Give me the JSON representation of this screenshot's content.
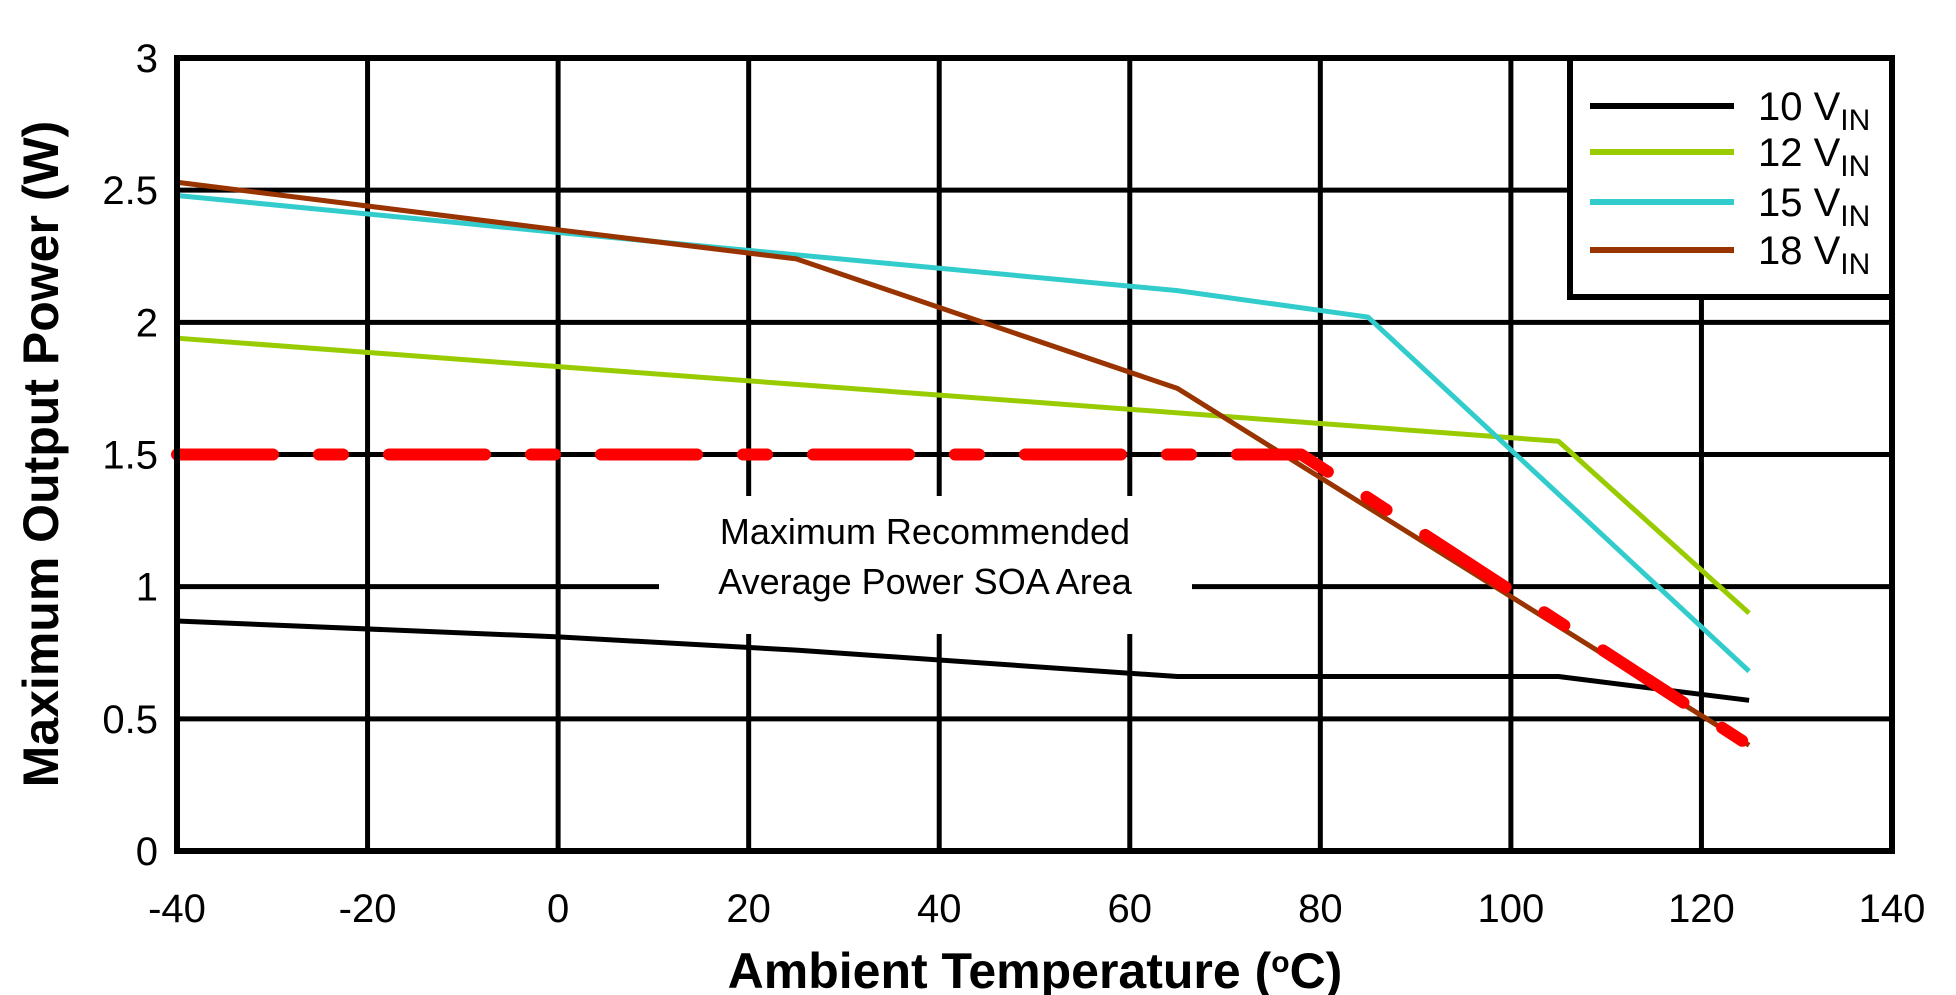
{
  "chart_data": {
    "type": "line",
    "title": "",
    "xlabel": "Ambient Temperature (°C)",
    "xlabel_parts": {
      "prefix": "Ambient Temperature (",
      "degree": "o",
      "suffix": "C)"
    },
    "ylabel": "Maximum Output Power (W)",
    "xlim": [
      -40,
      140
    ],
    "ylim": [
      0,
      3
    ],
    "xticks": [
      -40,
      -20,
      0,
      20,
      40,
      60,
      80,
      100,
      120,
      140
    ],
    "yticks": [
      0,
      0.5,
      1,
      1.5,
      2,
      2.5,
      3
    ],
    "ytick_labels": [
      "0",
      "0.5",
      "1",
      "1.5",
      "2",
      "2.5",
      "3"
    ],
    "grid": true,
    "legend_position": "upper right",
    "series": [
      {
        "name": "10 VIN",
        "label_main": "10 V",
        "label_sub": "IN",
        "color": "#000000",
        "points": [
          [
            -40,
            0.87
          ],
          [
            0,
            0.81
          ],
          [
            25,
            0.76
          ],
          [
            65,
            0.66
          ],
          [
            105,
            0.66
          ],
          [
            125,
            0.57
          ]
        ]
      },
      {
        "name": "12 VIN",
        "label_main": "12 V",
        "label_sub": "IN",
        "color": "#99CC00",
        "points": [
          [
            -40,
            1.94
          ],
          [
            105,
            1.55
          ],
          [
            125,
            0.9
          ]
        ]
      },
      {
        "name": "15 VIN",
        "label_main": "15 V",
        "label_sub": "IN",
        "color": "#33CCCC",
        "points": [
          [
            -40,
            2.48
          ],
          [
            0,
            2.34
          ],
          [
            65,
            2.12
          ],
          [
            85,
            2.02
          ],
          [
            125,
            0.68
          ]
        ]
      },
      {
        "name": "18 VIN",
        "label_main": "18 V",
        "label_sub": "IN",
        "color": "#993300",
        "points": [
          [
            -40,
            2.53
          ],
          [
            0,
            2.35
          ],
          [
            25,
            2.24
          ],
          [
            65,
            1.75
          ],
          [
            125,
            0.4
          ]
        ]
      }
    ],
    "soa_boundary": {
      "name": "Maximum Recommended Average Power SOA",
      "color": "#FF0000",
      "style": "dashed",
      "points": [
        [
          -40,
          1.5
        ],
        [
          78,
          1.5
        ],
        [
          125,
          0.4
        ]
      ]
    },
    "annotations": [
      {
        "text_line1": "Maximum Recommended",
        "text_line2": "Average Power SOA Area",
        "x": 30,
        "y": 1.12
      }
    ]
  }
}
